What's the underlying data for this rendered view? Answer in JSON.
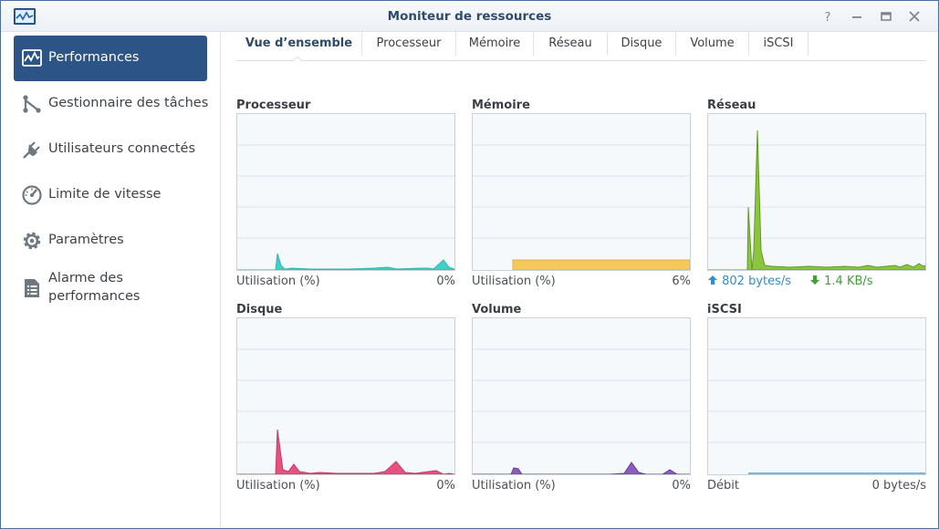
{
  "window": {
    "title": "Moniteur de ressources",
    "icons": [
      "app-monitor-icon",
      "help-icon",
      "minimize-icon",
      "maximize-icon",
      "close-icon"
    ]
  },
  "sidebar": {
    "items": [
      {
        "label": "Performances",
        "icon": "performance-icon",
        "active": true
      },
      {
        "label": "Gestionnaire des tâches",
        "icon": "task-manager-icon",
        "active": false
      },
      {
        "label": "Utilisateurs connectés",
        "icon": "plug-icon",
        "active": false
      },
      {
        "label": "Limite de vitesse",
        "icon": "speedometer-icon",
        "active": false
      },
      {
        "label": "Paramètres",
        "icon": "gear-icon",
        "active": false
      },
      {
        "label": "Alarme des performances",
        "icon": "document-list-icon",
        "active": false
      }
    ]
  },
  "tabs": [
    "Vue d’ensemble",
    "Processeur",
    "Mémoire",
    "Réseau",
    "Disque",
    "Volume",
    "iSCSI"
  ],
  "active_tab": 0,
  "panels": {
    "cpu": {
      "title": "Processeur",
      "label": "Utilisation (%)",
      "value": "0%",
      "color": "#3fcfc9"
    },
    "memory": {
      "title": "Mémoire",
      "label": "Utilisation (%)",
      "value": "6%",
      "color": "#f5c85a",
      "usage_percent": 6
    },
    "network": {
      "title": "Réseau",
      "upload": "802 bytes/s",
      "download": "1.4 KB/s",
      "color": "#8cc63f",
      "upload_color": "#2b8fd6",
      "download_color": "#3ea232"
    },
    "disk": {
      "title": "Disque",
      "label": "Utilisation (%)",
      "value": "0%",
      "color": "#e8507e"
    },
    "volume": {
      "title": "Volume",
      "label": "Utilisation (%)",
      "value": "0%",
      "color": "#8e5bbf"
    },
    "iscsi": {
      "title": "iSCSI",
      "label": "Débit",
      "value": "0 bytes/s",
      "color": "#2b8fd6"
    }
  }
}
